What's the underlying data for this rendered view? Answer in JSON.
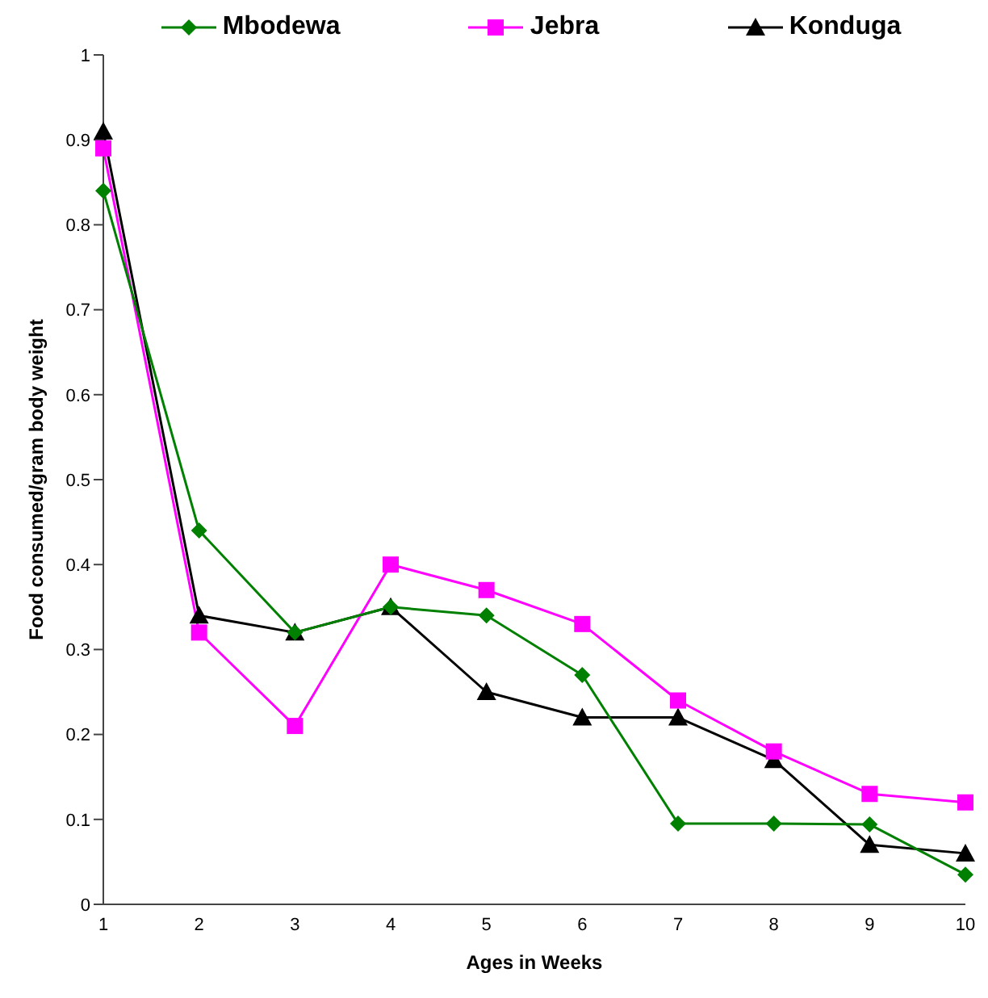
{
  "chart_data": {
    "type": "line",
    "xlabel": "Ages in Weeks",
    "ylabel": "Food consumed/gram body weight",
    "categories": [
      "1",
      "2",
      "3",
      "4",
      "5",
      "6",
      "7",
      "8",
      "9",
      "10"
    ],
    "series": [
      {
        "name": "Mbodewa",
        "color": "#008000",
        "marker": "diamond",
        "values": [
          0.84,
          0.44,
          0.32,
          0.35,
          0.34,
          0.27,
          0.095,
          0.095,
          0.094,
          0.035
        ]
      },
      {
        "name": "Jebra",
        "color": "#ff00ff",
        "marker": "square",
        "values": [
          0.89,
          0.32,
          0.21,
          0.4,
          0.37,
          0.33,
          0.24,
          0.18,
          0.13,
          0.12
        ]
      },
      {
        "name": "Konduga",
        "color": "#000000",
        "marker": "triangle",
        "values": [
          0.91,
          0.34,
          0.32,
          0.35,
          0.25,
          0.22,
          0.22,
          0.17,
          0.07,
          0.06
        ]
      }
    ],
    "ylim": [
      0,
      1
    ],
    "yticks": [
      0,
      0.1,
      0.2,
      0.3,
      0.4,
      0.5,
      0.6,
      0.7,
      0.8,
      0.9,
      1
    ],
    "grid": false,
    "legend": "top",
    "line_style": "solid"
  }
}
